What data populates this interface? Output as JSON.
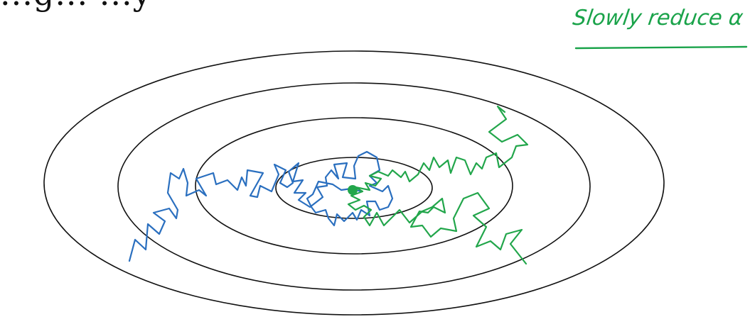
{
  "heading_fragment": "...g... ...y",
  "annotation": "Slowly reduce α",
  "colors": {
    "contours": "#111111",
    "blue_path": "#2a6fbf",
    "green_path": "#22a64b",
    "annotation": "#1aa34a"
  },
  "contours": {
    "count": 4
  },
  "paths": [
    {
      "name": "blue",
      "color": "#2a6fbf"
    },
    {
      "name": "green",
      "color": "#22a64b"
    }
  ]
}
